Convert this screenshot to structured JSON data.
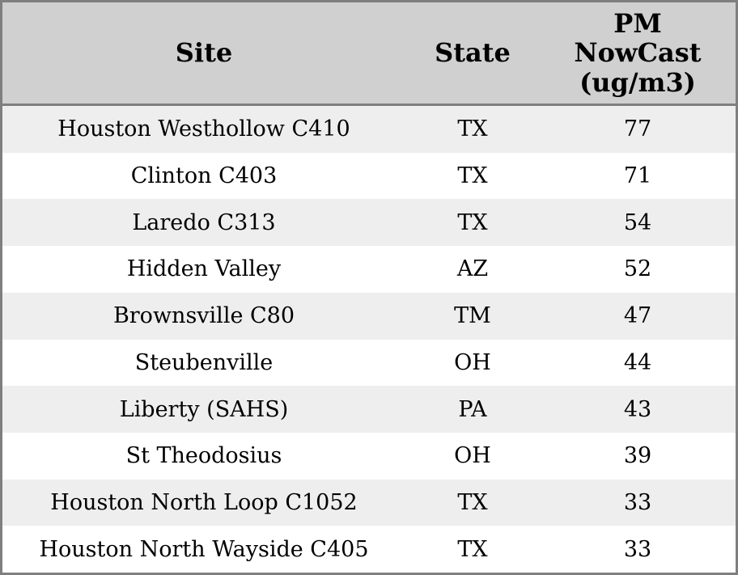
{
  "colors": {
    "header_bg": "#d0d0d0",
    "row_stripe_bg": "#eeeeee",
    "row_bg": "#ffffff",
    "border": "#7f7f7f",
    "text": "#000000"
  },
  "table": {
    "header": {
      "site": "Site",
      "state": "State",
      "pm_lines": [
        "PM",
        "NowCast",
        "(ug/m3)"
      ]
    },
    "rows": [
      {
        "site": "Houston Westhollow C410",
        "state": "TX",
        "value": "77"
      },
      {
        "site": "Clinton C403",
        "state": "TX",
        "value": "71"
      },
      {
        "site": "Laredo C313",
        "state": "TX",
        "value": "54"
      },
      {
        "site": "Hidden Valley",
        "state": "AZ",
        "value": "52"
      },
      {
        "site": "Brownsville C80",
        "state": "TM",
        "value": "47"
      },
      {
        "site": "Steubenville",
        "state": "OH",
        "value": "44"
      },
      {
        "site": "Liberty (SAHS)",
        "state": "PA",
        "value": "43"
      },
      {
        "site": "St Theodosius",
        "state": "OH",
        "value": "39"
      },
      {
        "site": "Houston North Loop C1052",
        "state": "TX",
        "value": "33"
      },
      {
        "site": "Houston North Wayside C405",
        "state": "TX",
        "value": "33"
      }
    ]
  },
  "chart_data": {
    "type": "table",
    "columns": [
      "Site",
      "State",
      "PM NowCast (ug/m3)"
    ],
    "rows": [
      [
        "Houston Westhollow C410",
        "TX",
        77
      ],
      [
        "Clinton C403",
        "TX",
        71
      ],
      [
        "Laredo C313",
        "TX",
        54
      ],
      [
        "Hidden Valley",
        "AZ",
        52
      ],
      [
        "Brownsville C80",
        "TM",
        47
      ],
      [
        "Steubenville",
        "OH",
        44
      ],
      [
        "Liberty (SAHS)",
        "PA",
        43
      ],
      [
        "St Theodosius",
        "OH",
        39
      ],
      [
        "Houston North Loop C1052",
        "TX",
        33
      ],
      [
        "Houston North Wayside C405",
        "TX",
        33
      ]
    ]
  }
}
